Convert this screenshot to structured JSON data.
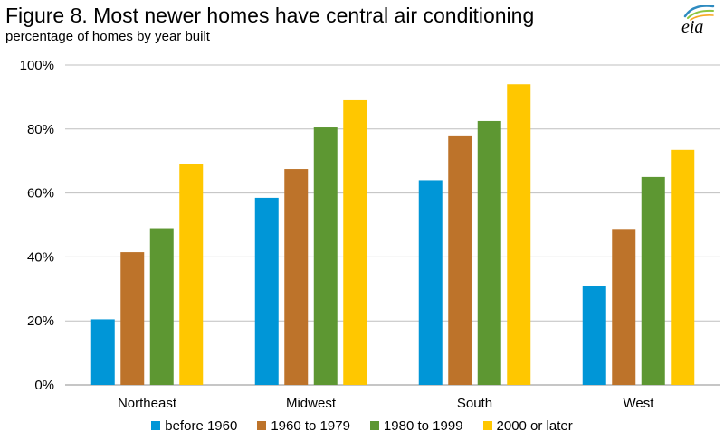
{
  "header": {
    "title": "Figure 8. Most newer homes have central air conditioning",
    "subtitle": "percentage of homes by year built",
    "logo_text": "eia"
  },
  "colors": {
    "series": [
      "#0096D7",
      "#BD732A",
      "#5D9732",
      "#FFC700"
    ],
    "grid": "#BFBFBF",
    "axis": "#8C8C8C"
  },
  "chart_data": {
    "type": "bar",
    "title": "Figure 8. Most newer homes have central air conditioning",
    "subtitle": "percentage of homes by year built",
    "categories": [
      "Northeast",
      "Midwest",
      "South",
      "West"
    ],
    "series": [
      {
        "name": "before 1960",
        "values": [
          20.5,
          58.5,
          64.0,
          31.0
        ]
      },
      {
        "name": "1960 to 1979",
        "values": [
          41.5,
          67.5,
          78.0,
          48.5
        ]
      },
      {
        "name": "1980 to 1999",
        "values": [
          49.0,
          80.5,
          82.5,
          65.0
        ]
      },
      {
        "name": "2000 or later",
        "values": [
          69.0,
          89.0,
          94.0,
          73.5
        ]
      }
    ],
    "yticks": [
      "0%",
      "20%",
      "40%",
      "60%",
      "80%",
      "100%"
    ],
    "ylim": [
      0,
      100
    ],
    "xlabel": "",
    "ylabel": "",
    "grid": true,
    "legend_position": "bottom"
  }
}
